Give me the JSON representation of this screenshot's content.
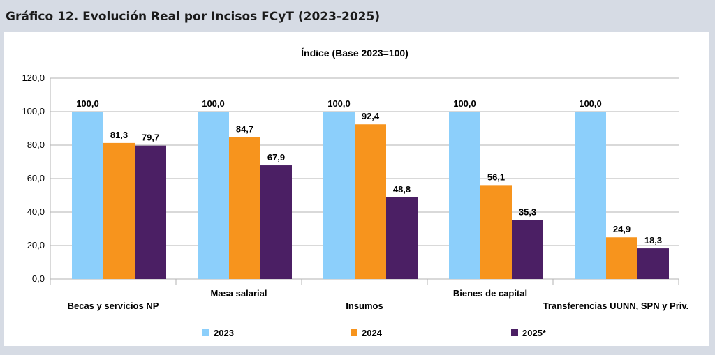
{
  "page": {
    "title": "Gráfico 12. Evolución Real por Incisos FCyT (2023-2025)"
  },
  "chart_data": {
    "type": "bar",
    "title": "Índice (Base 2023=100)",
    "categories": [
      "Becas y servicios NP",
      "Masa salarial",
      "Insumos",
      "Bienes de capital",
      "Transferencias UUNN, SPN y Priv."
    ],
    "series": [
      {
        "name": "2023",
        "color": "#8ccffb",
        "values": [
          100.0,
          100.0,
          100.0,
          100.0,
          100.0
        ],
        "labels": [
          "100,0",
          "100,0",
          "100,0",
          "100,0",
          "100,0"
        ]
      },
      {
        "name": "2024",
        "color": "#f7941d",
        "values": [
          81.3,
          84.7,
          92.4,
          56.1,
          24.9
        ],
        "labels": [
          "81,3",
          "84,7",
          "92,4",
          "56,1",
          "24,9"
        ]
      },
      {
        "name": "2025*",
        "color": "#4b1f64",
        "values": [
          79.7,
          67.9,
          48.8,
          35.3,
          18.3
        ],
        "labels": [
          "79,7",
          "67,9",
          "48,8",
          "35,3",
          "18,3"
        ]
      }
    ],
    "y_ticks": [
      "0,0",
      "20,0",
      "40,0",
      "60,0",
      "80,0",
      "100,0",
      "120,0"
    ],
    "ylim": [
      0,
      120
    ],
    "grid": true,
    "legend_position": "bottom"
  }
}
